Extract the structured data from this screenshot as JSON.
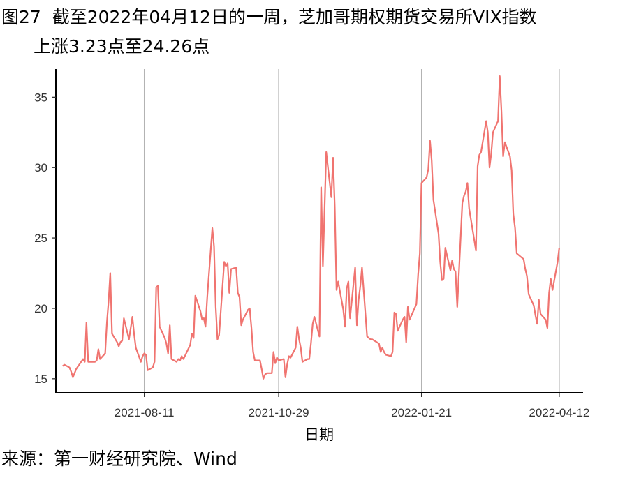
{
  "header": {
    "figure_label": "图27",
    "title_line1": "截至2022年04月12日的一周，芝加哥期权期货交易所VIX指数",
    "title_line2": "上涨3.23点至24.26点"
  },
  "footer": {
    "source": "来源：第一财经研究院、Wind"
  },
  "chart_data": {
    "type": "line",
    "title": "截至2022年04月12日的一周，芝加哥期权期货交易所VIX指数上涨3.23点至24.26点",
    "xlabel": "日期",
    "ylabel": "",
    "x_tick_labels": [
      "2021-08-11",
      "2021-10-29",
      "2022-01-21",
      "2022-04-12"
    ],
    "y_tick_labels": [
      "15",
      "20",
      "25",
      "30",
      "35"
    ],
    "ylim": [
      14,
      37
    ],
    "xlim": [
      "2021-06-20",
      "2022-04-26"
    ],
    "grid": "vertical lines at x ticks",
    "legend": "none",
    "line_color": "#f07470",
    "series": [
      {
        "x": [
          "2021-06-24",
          "2021-06-25",
          "2021-06-28",
          "2021-06-29",
          "2021-06-30",
          "2021-07-01",
          "2021-07-02",
          "2021-07-06",
          "2021-07-07",
          "2021-07-08",
          "2021-07-09",
          "2021-07-12",
          "2021-07-13",
          "2021-07-14",
          "2021-07-15",
          "2021-07-16",
          "2021-07-19",
          "2021-07-20",
          "2021-07-21",
          "2021-07-22",
          "2021-07-23",
          "2021-07-26",
          "2021-07-27",
          "2021-07-28",
          "2021-07-29",
          "2021-07-30",
          "2021-08-02",
          "2021-08-03",
          "2021-08-04",
          "2021-08-05",
          "2021-08-06",
          "2021-08-09",
          "2021-08-10",
          "2021-08-11",
          "2021-08-12",
          "2021-08-13",
          "2021-08-16",
          "2021-08-17",
          "2021-08-18",
          "2021-08-19",
          "2021-08-20",
          "2021-08-23",
          "2021-08-24",
          "2021-08-25",
          "2021-08-26",
          "2021-08-27",
          "2021-08-30",
          "2021-08-31",
          "2021-09-01",
          "2021-09-02",
          "2021-09-03",
          "2021-09-07",
          "2021-09-08",
          "2021-09-09",
          "2021-09-10",
          "2021-09-13",
          "2021-09-14",
          "2021-09-15",
          "2021-09-16",
          "2021-09-17",
          "2021-09-20",
          "2021-09-21",
          "2021-09-22",
          "2021-09-23",
          "2021-09-24",
          "2021-09-27",
          "2021-09-28",
          "2021-09-29",
          "2021-09-30",
          "2021-10-01",
          "2021-10-04",
          "2021-10-05",
          "2021-10-06",
          "2021-10-07",
          "2021-10-08",
          "2021-10-11",
          "2021-10-12",
          "2021-10-13",
          "2021-10-14",
          "2021-10-15",
          "2021-10-18",
          "2021-10-19",
          "2021-10-20",
          "2021-10-21",
          "2021-10-22",
          "2021-10-25",
          "2021-10-26",
          "2021-10-27",
          "2021-10-28",
          "2021-10-29",
          "2021-11-01",
          "2021-11-02",
          "2021-11-03",
          "2021-11-04",
          "2021-11-05",
          "2021-11-08",
          "2021-11-09",
          "2021-11-10",
          "2021-11-11",
          "2021-11-12",
          "2021-11-15",
          "2021-11-16",
          "2021-11-17",
          "2021-11-18",
          "2021-11-19",
          "2021-11-22",
          "2021-11-23",
          "2021-11-24",
          "2021-11-26",
          "2021-11-29",
          "2021-11-30",
          "2021-12-01",
          "2021-12-02",
          "2021-12-03",
          "2021-12-06",
          "2021-12-07",
          "2021-12-08",
          "2021-12-09",
          "2021-12-10",
          "2021-12-13",
          "2021-12-14",
          "2021-12-15",
          "2021-12-16",
          "2021-12-17",
          "2021-12-20",
          "2021-12-21",
          "2021-12-22",
          "2021-12-23",
          "2021-12-27",
          "2021-12-28",
          "2021-12-29",
          "2021-12-30",
          "2021-12-31",
          "2022-01-03",
          "2022-01-04",
          "2022-01-05",
          "2022-01-06",
          "2022-01-07",
          "2022-01-10",
          "2022-01-11",
          "2022-01-12",
          "2022-01-13",
          "2022-01-14",
          "2022-01-18",
          "2022-01-19",
          "2022-01-20",
          "2022-01-21",
          "2022-01-24",
          "2022-01-25",
          "2022-01-26",
          "2022-01-27",
          "2022-01-28",
          "2022-01-31",
          "2022-02-01",
          "2022-02-02",
          "2022-02-03",
          "2022-02-04",
          "2022-02-07",
          "2022-02-08",
          "2022-02-09",
          "2022-02-10",
          "2022-02-11",
          "2022-02-14",
          "2022-02-15",
          "2022-02-16",
          "2022-02-17",
          "2022-02-18",
          "2022-02-22",
          "2022-02-23",
          "2022-02-24",
          "2022-02-25",
          "2022-02-28",
          "2022-03-01",
          "2022-03-02",
          "2022-03-03",
          "2022-03-04",
          "2022-03-07",
          "2022-03-08",
          "2022-03-09",
          "2022-03-10",
          "2022-03-11",
          "2022-03-14",
          "2022-03-15",
          "2022-03-16",
          "2022-03-17",
          "2022-03-18",
          "2022-03-21",
          "2022-03-22",
          "2022-03-23",
          "2022-03-24",
          "2022-03-25",
          "2022-03-28",
          "2022-03-29",
          "2022-03-30",
          "2022-03-31",
          "2022-04-01",
          "2022-04-04",
          "2022-04-05",
          "2022-04-06",
          "2022-04-07",
          "2022-04-08",
          "2022-04-11",
          "2022-04-12"
        ],
        "y": [
          15.9,
          16.0,
          15.8,
          15.5,
          15.1,
          15.4,
          15.7,
          16.4,
          16.2,
          19.0,
          16.2,
          16.2,
          16.2,
          16.3,
          17.1,
          16.4,
          16.8,
          19.0,
          20.5,
          22.5,
          18.2,
          17.6,
          17.3,
          17.6,
          17.7,
          19.3,
          17.8,
          18.6,
          19.4,
          18.2,
          17.2,
          16.2,
          16.6,
          16.8,
          16.7,
          15.6,
          15.8,
          16.2,
          21.5,
          21.6,
          18.7,
          17.9,
          17.5,
          16.8,
          18.8,
          16.4,
          16.2,
          16.4,
          16.3,
          16.6,
          16.4,
          17.4,
          18.2,
          17.9,
          20.9,
          19.8,
          19.2,
          19.3,
          18.7,
          20.8,
          25.7,
          24.4,
          20.1,
          17.8,
          18.1,
          23.3,
          23.0,
          23.2,
          21.1,
          22.8,
          22.9,
          21.1,
          20.8,
          18.8,
          19.2,
          19.9,
          20.0,
          18.6,
          16.9,
          16.3,
          16.3,
          15.7,
          15.0,
          15.3,
          15.4,
          15.4,
          16.9,
          16.1,
          16.5,
          16.3,
          16.4,
          15.1,
          16.0,
          16.6,
          16.5,
          17.2,
          18.7,
          17.8,
          17.2,
          16.2,
          16.4,
          16.4,
          17.5,
          18.9,
          19.4,
          18.0,
          28.6,
          23.0,
          31.1,
          27.9,
          30.7,
          27.2,
          21.3,
          21.9,
          19.9,
          18.7,
          21.4,
          21.9,
          19.3,
          22.9,
          18.8,
          20.6,
          21.6,
          22.9,
          18.0,
          17.9,
          17.8,
          17.8,
          17.5,
          16.9,
          17.2,
          16.9,
          16.7,
          16.6,
          16.9,
          19.7,
          19.6,
          18.4,
          19.2,
          19.4,
          17.6,
          20.1,
          19.2,
          20.3,
          22.4,
          23.9,
          28.9,
          29.3,
          29.9,
          31.9,
          30.5,
          27.7,
          25.3,
          23.3,
          22.0,
          22.1,
          24.3,
          22.7,
          23.4,
          22.8,
          22.6,
          20.1,
          27.5,
          28.0,
          28.3,
          28.9,
          27.1,
          24.1,
          30.1,
          30.9,
          31.1,
          33.3,
          32.5,
          30.0,
          31.0,
          32.5,
          33.3,
          36.5,
          34.0,
          30.8,
          31.8,
          30.8,
          29.8,
          26.7,
          25.7,
          23.9,
          23.6,
          23.5,
          22.8,
          22.3,
          21.0,
          20.2,
          19.5,
          18.9,
          20.6,
          19.6,
          19.2,
          18.6,
          21.1,
          22.1,
          21.3,
          23.3,
          24.3
        ]
      }
    ]
  }
}
